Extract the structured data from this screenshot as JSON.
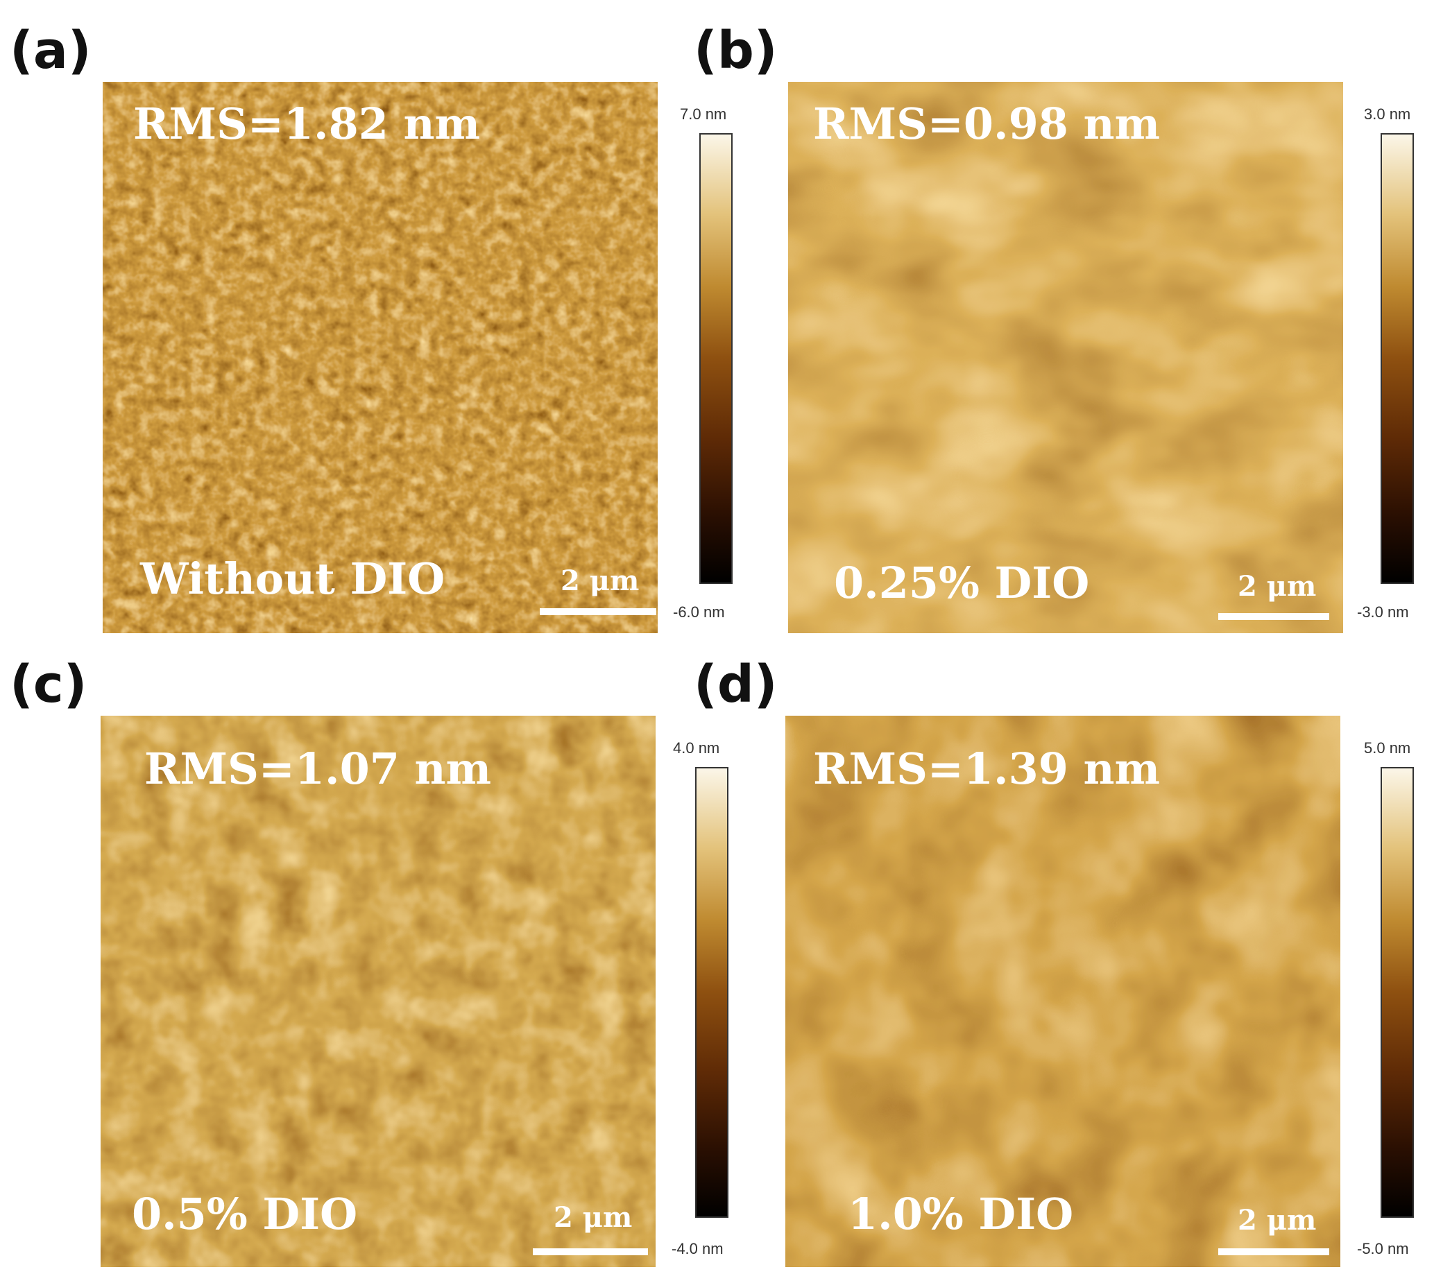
{
  "panels": [
    {
      "letter": "(a)",
      "rms": "RMS=1.82 nm",
      "condition": "Without DIO",
      "scale_bar": "2 μm",
      "colorbar_max": "7.0 nm",
      "colorbar_min": "-6.0 nm"
    },
    {
      "letter": "(b)",
      "rms": "RMS=0.98 nm",
      "condition": "0.25% DIO",
      "scale_bar": "2 μm",
      "colorbar_max": "3.0 nm",
      "colorbar_min": "-3.0 nm"
    },
    {
      "letter": "(c)",
      "rms": "RMS=1.07 nm",
      "condition": "0.5% DIO",
      "scale_bar": "2 μm",
      "colorbar_max": "4.0 nm",
      "colorbar_min": "-4.0 nm"
    },
    {
      "letter": "(d)",
      "rms": "RMS=1.39 nm",
      "condition": "1.0% DIO",
      "scale_bar": "2 μm",
      "colorbar_max": "5.0 nm",
      "colorbar_min": "-5.0 nm"
    }
  ],
  "colors": {
    "afm_dark": "#1a0700",
    "afm_mid": "#8a4e12",
    "afm_light": "#f5e6c4",
    "label_text": "#ffffff",
    "letter_text": "#111111"
  }
}
